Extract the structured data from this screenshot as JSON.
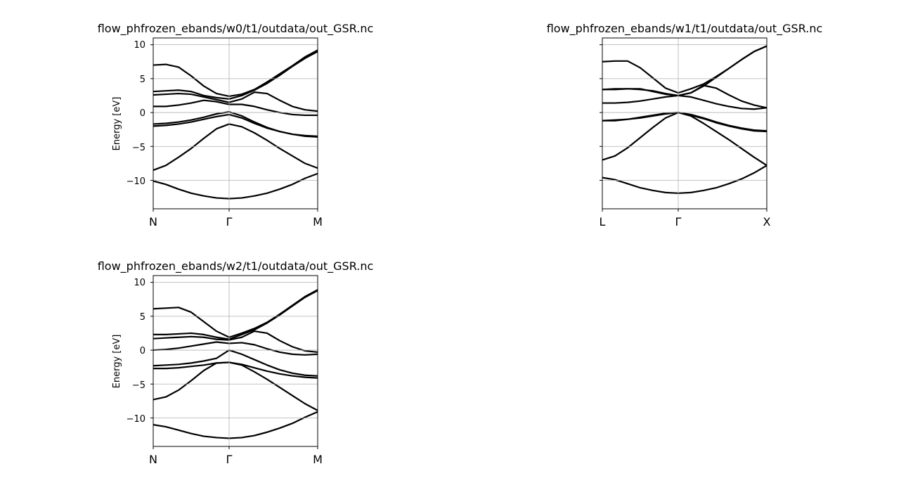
{
  "chart_data": [
    {
      "type": "line",
      "title": "flow_phfrozen_ebands/w0/t1/outdata/out_GSR.nc",
      "xlabel": "",
      "ylabel": "Energy [eV]",
      "xlim": [
        0,
        13
      ],
      "ylim": [
        -14.2,
        11
      ],
      "yticks": [
        "10",
        "5",
        "0",
        "−5",
        "−10"
      ],
      "ytick_values": [
        10,
        5,
        0,
        -5,
        -10
      ],
      "xticks": [
        "N",
        "Γ",
        "M"
      ],
      "xtick_values": [
        0,
        6,
        13
      ],
      "grid": true,
      "line_color": "#000000",
      "x": [
        0,
        1,
        2,
        3,
        4,
        5,
        6,
        7,
        8,
        9,
        10,
        11,
        12,
        13
      ],
      "series": [
        {
          "values": [
            -10.1,
            -10.6,
            -11.3,
            -11.9,
            -12.3,
            -12.6,
            -12.7,
            -12.6,
            -12.3,
            -11.9,
            -11.3,
            -10.6,
            -9.7,
            -9.0
          ]
        },
        {
          "values": [
            -8.5,
            -7.8,
            -6.6,
            -5.3,
            -3.8,
            -2.4,
            -1.7,
            -2.1,
            -3.0,
            -4.1,
            -5.3,
            -6.4,
            -7.5,
            -8.2
          ]
        },
        {
          "values": [
            -2.0,
            -1.9,
            -1.7,
            -1.4,
            -1.0,
            -0.6,
            -0.3,
            -0.8,
            -1.6,
            -2.3,
            -2.8,
            -3.2,
            -3.4,
            -3.5
          ]
        },
        {
          "values": [
            -1.7,
            -1.6,
            -1.4,
            -1.1,
            -0.7,
            -0.2,
            0.1,
            -0.5,
            -1.4,
            -2.2,
            -2.8,
            -3.2,
            -3.5,
            -3.6
          ]
        },
        {
          "values": [
            0.9,
            0.9,
            1.1,
            1.4,
            1.8,
            1.6,
            1.2,
            1.2,
            0.9,
            0.4,
            0.0,
            -0.3,
            -0.4,
            -0.4
          ]
        },
        {
          "values": [
            2.6,
            2.7,
            2.8,
            2.7,
            2.3,
            1.9,
            1.5,
            2.0,
            3.0,
            2.8,
            1.8,
            0.9,
            0.4,
            0.2
          ]
        },
        {
          "values": [
            3.1,
            3.2,
            3.3,
            3.1,
            2.5,
            2.2,
            2.0,
            2.5,
            3.3,
            4.3,
            5.5,
            6.8,
            8.0,
            9.0
          ]
        },
        {
          "values": [
            7.0,
            7.1,
            6.7,
            5.4,
            3.9,
            2.8,
            2.4,
            2.7,
            3.4,
            4.5,
            5.7,
            6.9,
            8.2,
            9.2
          ]
        }
      ]
    },
    {
      "type": "line",
      "title": "flow_phfrozen_ebands/w1/t1/outdata/out_GSR.nc",
      "xlabel": "",
      "ylabel": "",
      "xlim": [
        0,
        13
      ],
      "ylim": [
        -14.2,
        11
      ],
      "yticks": [],
      "ytick_values": [
        10,
        5,
        0,
        -5,
        -10
      ],
      "xticks": [
        "L",
        "Γ",
        "X"
      ],
      "xtick_values": [
        0,
        6,
        13
      ],
      "grid": true,
      "line_color": "#000000",
      "x": [
        0,
        1,
        2,
        3,
        4,
        5,
        6,
        7,
        8,
        9,
        10,
        11,
        12,
        13
      ],
      "series": [
        {
          "values": [
            -9.6,
            -9.9,
            -10.5,
            -11.1,
            -11.5,
            -11.8,
            -11.9,
            -11.8,
            -11.5,
            -11.1,
            -10.5,
            -9.8,
            -8.9,
            -7.8
          ]
        },
        {
          "values": [
            -7.0,
            -6.4,
            -5.2,
            -3.7,
            -2.2,
            -0.8,
            0.0,
            -0.5,
            -1.6,
            -2.8,
            -4.0,
            -5.3,
            -6.6,
            -7.8
          ]
        },
        {
          "values": [
            -1.2,
            -1.2,
            -1.0,
            -0.8,
            -0.5,
            -0.2,
            0.0,
            -0.3,
            -0.8,
            -1.4,
            -1.9,
            -2.3,
            -2.6,
            -2.7
          ]
        },
        {
          "values": [
            -1.2,
            -1.1,
            -1.0,
            -0.7,
            -0.4,
            -0.1,
            0.0,
            -0.4,
            -0.9,
            -1.5,
            -2.0,
            -2.4,
            -2.7,
            -2.8
          ]
        },
        {
          "values": [
            1.4,
            1.4,
            1.5,
            1.7,
            2.0,
            2.3,
            2.5,
            2.3,
            1.8,
            1.3,
            0.9,
            0.6,
            0.5,
            0.7
          ]
        },
        {
          "values": [
            3.4,
            3.5,
            3.5,
            3.5,
            3.1,
            2.7,
            2.5,
            2.9,
            4.0,
            3.6,
            2.6,
            1.7,
            1.1,
            0.7
          ]
        },
        {
          "values": [
            3.4,
            3.4,
            3.5,
            3.4,
            3.2,
            2.8,
            2.5,
            2.9,
            3.9,
            5.2,
            6.5,
            7.8,
            9.0,
            9.8
          ]
        },
        {
          "values": [
            7.5,
            7.6,
            7.6,
            6.6,
            5.1,
            3.6,
            2.9,
            3.5,
            4.2,
            5.3,
            6.5,
            7.8,
            9.0,
            9.8
          ]
        }
      ]
    },
    {
      "type": "line",
      "title": "flow_phfrozen_ebands/w2/t1/outdata/out_GSR.nc",
      "xlabel": "",
      "ylabel": "Energy [eV]",
      "xlim": [
        0,
        13
      ],
      "ylim": [
        -14.2,
        11
      ],
      "yticks": [
        "10",
        "5",
        "0",
        "−5",
        "−10"
      ],
      "ytick_values": [
        10,
        5,
        0,
        -5,
        -10
      ],
      "xticks": [
        "N",
        "Γ",
        "M"
      ],
      "xtick_values": [
        0,
        6,
        13
      ],
      "grid": true,
      "line_color": "#000000",
      "x": [
        0,
        1,
        2,
        3,
        4,
        5,
        6,
        7,
        8,
        9,
        10,
        11,
        12,
        13
      ],
      "series": [
        {
          "values": [
            -11.0,
            -11.3,
            -11.8,
            -12.3,
            -12.7,
            -12.9,
            -13.0,
            -12.9,
            -12.6,
            -12.1,
            -11.5,
            -10.8,
            -9.9,
            -9.1
          ]
        },
        {
          "values": [
            -7.3,
            -6.9,
            -5.9,
            -4.5,
            -3.0,
            -1.9,
            -1.8,
            -2.2,
            -3.2,
            -4.3,
            -5.5,
            -6.7,
            -7.9,
            -8.9
          ]
        },
        {
          "values": [
            -2.7,
            -2.7,
            -2.6,
            -2.4,
            -2.2,
            -1.9,
            -1.8,
            -2.1,
            -2.6,
            -3.1,
            -3.5,
            -3.8,
            -4.0,
            -4.1
          ]
        },
        {
          "values": [
            -2.3,
            -2.2,
            -2.1,
            -1.9,
            -1.6,
            -1.2,
            0.0,
            -0.6,
            -1.4,
            -2.2,
            -2.9,
            -3.4,
            -3.7,
            -3.8
          ]
        },
        {
          "values": [
            0.0,
            0.1,
            0.3,
            0.6,
            0.9,
            1.2,
            1.0,
            1.1,
            0.8,
            0.2,
            -0.3,
            -0.6,
            -0.7,
            -0.6
          ]
        },
        {
          "values": [
            1.7,
            1.8,
            1.9,
            2.0,
            1.9,
            1.6,
            1.5,
            1.9,
            2.8,
            2.5,
            1.4,
            0.5,
            -0.1,
            -0.3
          ]
        },
        {
          "values": [
            2.3,
            2.3,
            2.4,
            2.5,
            2.3,
            1.9,
            1.6,
            2.3,
            3.0,
            4.0,
            5.2,
            6.5,
            7.8,
            8.8
          ]
        },
        {
          "values": [
            6.1,
            6.2,
            6.3,
            5.6,
            4.2,
            2.8,
            1.9,
            2.5,
            3.2,
            4.1,
            5.3,
            6.6,
            7.9,
            8.9
          ]
        }
      ]
    }
  ]
}
